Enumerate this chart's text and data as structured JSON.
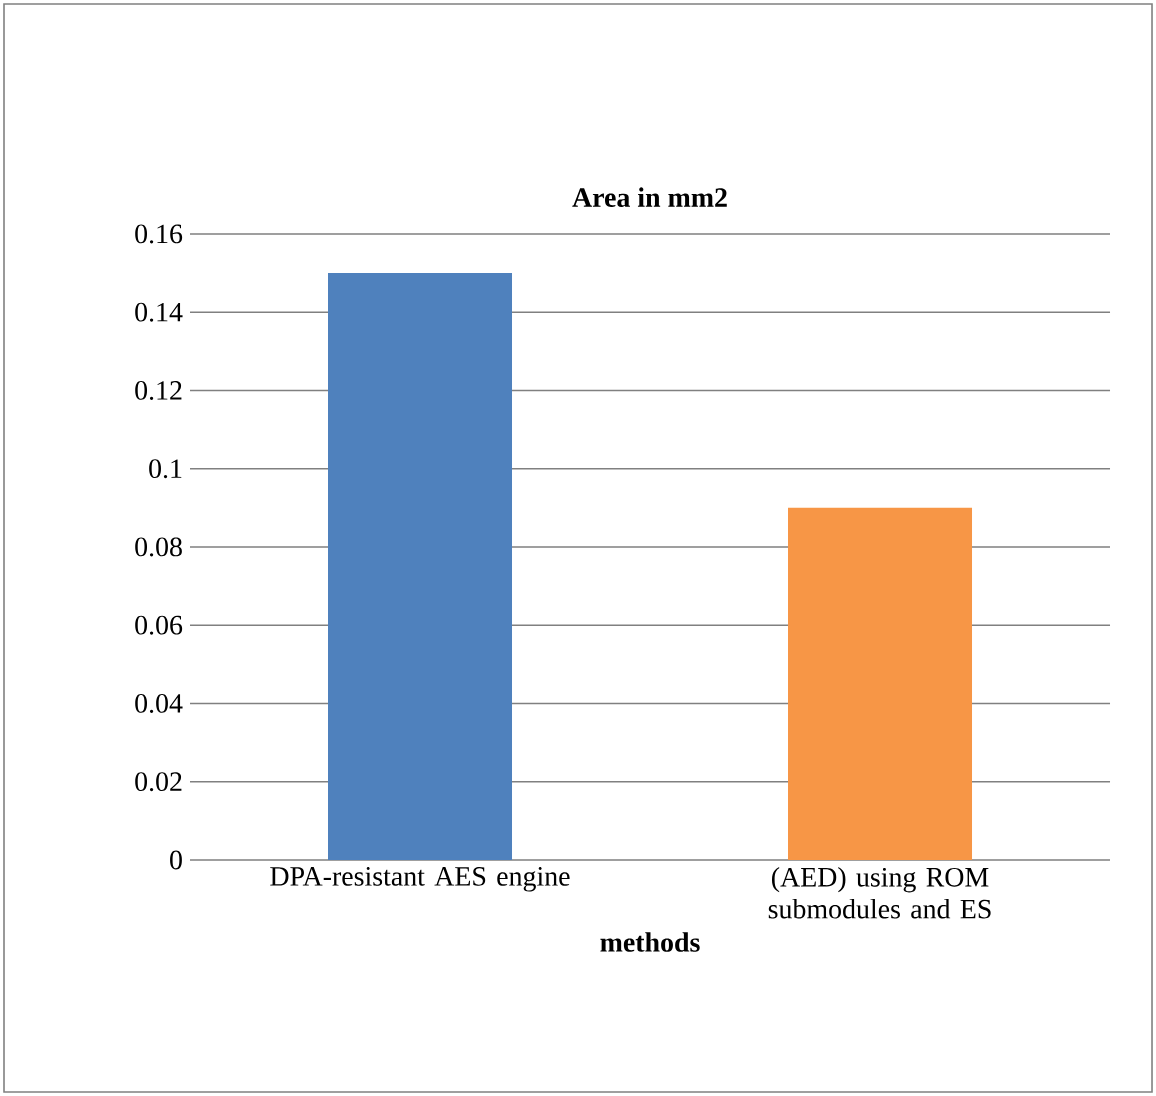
{
  "chart_data": {
    "type": "bar",
    "title": "Area in mm2",
    "xlabel": "methods",
    "categories": [
      "DPA-resistant AES engine",
      "(AED) using ROM submodules and ES"
    ],
    "values": [
      0.15,
      0.09
    ],
    "colors": [
      "#4f81bd",
      "#f79646"
    ],
    "ylim": [
      0,
      0.16
    ],
    "yticks": [
      0,
      0.02,
      0.04,
      0.06,
      0.08,
      0.1,
      0.12,
      0.14,
      0.16
    ],
    "grid": "y"
  }
}
